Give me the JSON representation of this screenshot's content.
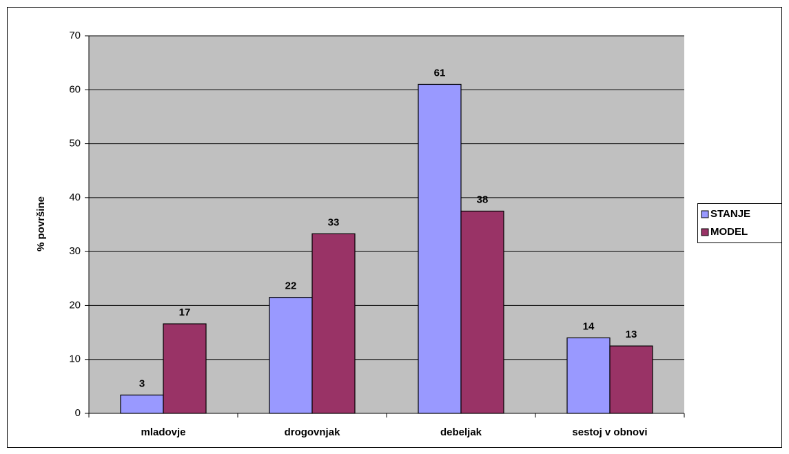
{
  "chart_data": {
    "type": "bar",
    "y_label": "% površine",
    "categories": [
      "mladovje",
      "drogovnjak",
      "debeljak",
      "sestoj v obnovi"
    ],
    "series": [
      {
        "name": "STANJE",
        "color": "#9999ff",
        "values": [
          3.4,
          21.5,
          61,
          14
        ],
        "value_labels": [
          "3",
          "22",
          "61",
          "14"
        ]
      },
      {
        "name": "MODEL",
        "color": "#993366",
        "values": [
          16.6,
          33.3,
          37.5,
          12.5
        ],
        "value_labels": [
          "17",
          "33",
          "38",
          "13"
        ]
      }
    ],
    "ylim": [
      0,
      70
    ],
    "yticks": [
      0,
      10,
      20,
      30,
      40,
      50,
      60,
      70
    ],
    "grid": true,
    "legend": "right"
  }
}
